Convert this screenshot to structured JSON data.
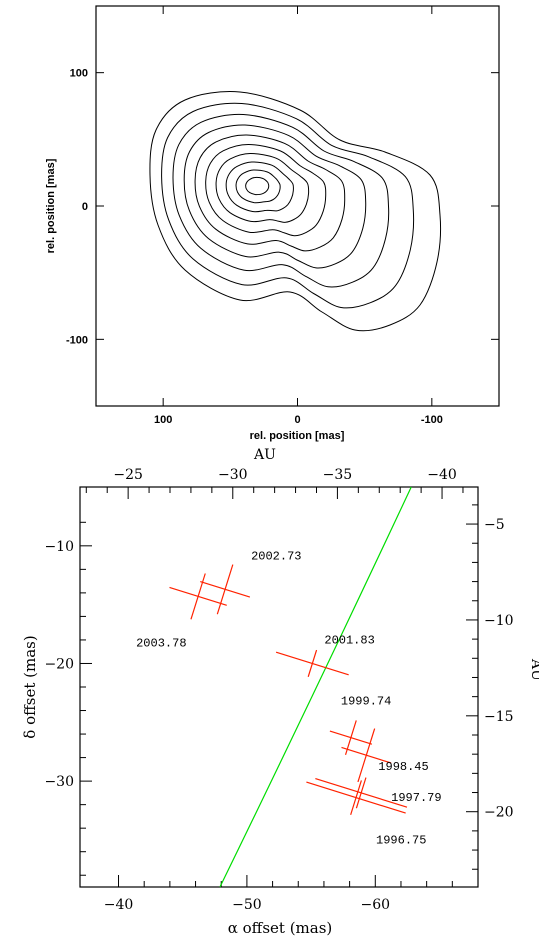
{
  "chart_data": [
    {
      "type": "contour",
      "xlabel": "rel. position [mas]",
      "ylabel": "rel. position [mas]",
      "x_axis_reversed": true,
      "xlim": [
        150,
        -150
      ],
      "ylim": [
        -150,
        150
      ],
      "xticks": [
        100,
        0,
        -100
      ],
      "yticks": [
        100,
        0,
        -100
      ],
      "xtick_labels": [
        "100",
        "0",
        "-100"
      ],
      "ytick_labels": [
        "100",
        "0",
        "-100"
      ],
      "peak": {
        "x": 30,
        "y": 15
      },
      "n_contours": 10
    },
    {
      "type": "scatter",
      "xlabel": "α offset (mas)",
      "ylabel": "δ offset (mas)",
      "top_axis_label": "AU",
      "right_axis_label": "AU",
      "xlim": [
        -37,
        -68
      ],
      "ylim": [
        -39,
        -5
      ],
      "xticks": [
        -40,
        -50,
        -60
      ],
      "yticks": [
        -10,
        -20,
        -30
      ],
      "xtick_labels": [
        "−40",
        "−50",
        "−60"
      ],
      "ytick_labels": [
        "−10",
        "−20",
        "−30"
      ],
      "top_ticks": [
        -25,
        -30,
        -35,
        -40
      ],
      "top_tick_labels": [
        "−25",
        "−30",
        "−35",
        "−40"
      ],
      "right_ticks": [
        -5,
        -10,
        -15,
        -20
      ],
      "right_tick_labels": [
        "−5",
        "−10",
        "−15",
        "−20"
      ],
      "grid": false,
      "points": [
        {
          "label": "2002.73",
          "x": -48.3,
          "y": -13.7
        },
        {
          "label": "2003.78",
          "x": -46.2,
          "y": -14.3
        },
        {
          "label": "2001.83",
          "x": -55.1,
          "y": -20.0
        },
        {
          "label": "1999.74",
          "x": -58.1,
          "y": -26.3
        },
        {
          "label": "1998.45",
          "x": -59.3,
          "y": -27.8
        },
        {
          "label": "1997.79",
          "x": -58.9,
          "y": -31.0
        },
        {
          "label": "1996.75",
          "x": -58.5,
          "y": -31.4
        }
      ],
      "curve_color": "#00dd00",
      "point_color": "#ff2200"
    }
  ]
}
